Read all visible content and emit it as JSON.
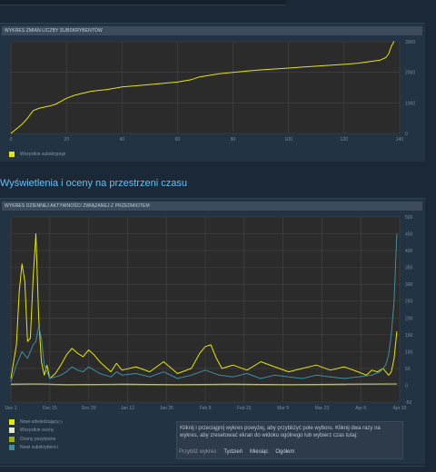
{
  "subs_chart": {
    "header": "WYKRES ZMIAN LICZBY SUBSKRYBENTÓW",
    "legend": [
      {
        "label": "Wszystkie subskrypcje",
        "color": "#e6e600"
      }
    ],
    "chart_data": {
      "type": "line",
      "xlim": [
        0,
        140
      ],
      "ylim": [
        0,
        3000
      ],
      "x_ticks": [
        0,
        20,
        40,
        60,
        80,
        100,
        120,
        140
      ],
      "y_ticks": [
        0,
        1000,
        2000,
        3000
      ],
      "grid": true,
      "series": [
        {
          "name": "Wszystkie subskrypcje",
          "color": "#e6e600",
          "x": [
            0,
            2,
            4,
            6,
            8,
            10,
            12,
            14,
            16,
            18,
            20,
            23,
            26,
            29,
            32,
            35,
            40,
            45,
            50,
            55,
            60,
            65,
            68,
            70,
            72,
            75,
            80,
            85,
            90,
            95,
            100,
            105,
            110,
            115,
            120,
            125,
            130,
            133,
            135,
            136,
            137,
            138
          ],
          "y": [
            0,
            150,
            300,
            500,
            750,
            820,
            860,
            900,
            950,
            1050,
            1150,
            1250,
            1320,
            1380,
            1410,
            1440,
            1520,
            1560,
            1600,
            1640,
            1680,
            1760,
            1850,
            1880,
            1910,
            1950,
            2000,
            2040,
            2080,
            2110,
            2140,
            2170,
            2200,
            2230,
            2260,
            2300,
            2360,
            2400,
            2480,
            2600,
            2850,
            3020
          ]
        }
      ]
    }
  },
  "section_title": "Wyświetlenia i oceny na przestrzeni czasu",
  "activity_chart": {
    "header": "WYKRES DZIENNEJ AKTYWNOŚCI ZWIĄZANEJ Z PRZEDMIOTEM",
    "legend": [
      {
        "label": "Nowi odwiedzający",
        "sup": "(?)",
        "color": "#e6e600"
      },
      {
        "label": "Wszystkie oceny",
        "sup": "",
        "color": "#e8e8c8"
      },
      {
        "label": "Oceny pozytywne",
        "sup": "",
        "color": "#9fb000"
      },
      {
        "label": "Nowi subskrybenci",
        "sup": "",
        "color": "#3f8ea0"
      }
    ],
    "chart_data": {
      "type": "line",
      "x_tick_labels": [
        "Dec 1",
        "Dec 15",
        "Dec 29",
        "Jan 12",
        "Jan 26",
        "Feb 9",
        "Feb 23",
        "Mar 9",
        "Mar 23",
        "Apr 6",
        "Apr 20"
      ],
      "xlim": [
        0,
        140
      ],
      "ylim": [
        -50,
        500
      ],
      "y_ticks": [
        -50,
        0,
        50,
        100,
        150,
        200,
        250,
        300,
        350,
        400,
        450,
        500
      ],
      "grid": true,
      "series": [
        {
          "name": "Nowi odwiedzający",
          "color": "#e6e600",
          "x": [
            0,
            2,
            3,
            4,
            5,
            6,
            7,
            8,
            9,
            10,
            11,
            12,
            13,
            14,
            16,
            18,
            20,
            22,
            24,
            26,
            28,
            30,
            32,
            34,
            36,
            38,
            40,
            45,
            50,
            55,
            60,
            65,
            68,
            70,
            72,
            74,
            76,
            80,
            85,
            90,
            95,
            100,
            105,
            110,
            115,
            120,
            125,
            128,
            130,
            132,
            134,
            136,
            137,
            138,
            139
          ],
          "y": [
            20,
            120,
            280,
            360,
            310,
            130,
            140,
            320,
            450,
            200,
            70,
            30,
            60,
            20,
            35,
            60,
            90,
            110,
            95,
            85,
            105,
            90,
            70,
            55,
            40,
            65,
            45,
            55,
            40,
            70,
            35,
            50,
            95,
            115,
            120,
            80,
            50,
            60,
            45,
            70,
            55,
            40,
            50,
            60,
            45,
            55,
            40,
            30,
            45,
            40,
            50,
            30,
            40,
            80,
            160
          ]
        },
        {
          "name": "Wszystkie oceny",
          "color": "#e8e8c8",
          "x": [
            0,
            10,
            20,
            40,
            60,
            80,
            100,
            120,
            139
          ],
          "y": [
            3,
            4,
            2,
            3,
            2,
            3,
            2,
            3,
            4
          ]
        },
        {
          "name": "Oceny pozytywne",
          "color": "#9fb000",
          "x": [
            0,
            10,
            20,
            40,
            60,
            80,
            100,
            120,
            139
          ],
          "y": [
            2,
            3,
            1,
            2,
            1,
            2,
            1,
            2,
            3
          ]
        },
        {
          "name": "Nowi subskrybenci",
          "color": "#3f8ea0",
          "x": [
            0,
            2,
            4,
            6,
            8,
            9,
            10,
            11,
            12,
            14,
            16,
            18,
            20,
            22,
            24,
            26,
            28,
            30,
            32,
            34,
            36,
            38,
            40,
            45,
            50,
            55,
            60,
            65,
            70,
            75,
            80,
            85,
            90,
            95,
            100,
            105,
            110,
            115,
            120,
            125,
            130,
            133,
            135,
            136,
            137,
            138,
            139
          ],
          "y": [
            10,
            60,
            100,
            80,
            120,
            130,
            175,
            140,
            60,
            20,
            25,
            30,
            40,
            55,
            45,
            40,
            55,
            45,
            35,
            30,
            25,
            40,
            30,
            35,
            25,
            40,
            20,
            30,
            45,
            30,
            25,
            35,
            20,
            30,
            25,
            20,
            30,
            25,
            20,
            25,
            30,
            40,
            60,
            90,
            150,
            250,
            450
          ]
        }
      ]
    }
  },
  "info_box": {
    "text": "Kliknij i przeciągnij wykres powyżej, aby przybliżyć pole wyboru. Kliknij dwa razy na wykres, aby zresetować ekran do widoku ogólnego lub wybierz czas tutaj:",
    "zoom_label": "Przybliż wykres",
    "zoom_options": [
      "Tydzień",
      "Miesiąc",
      "Ogółem"
    ]
  }
}
